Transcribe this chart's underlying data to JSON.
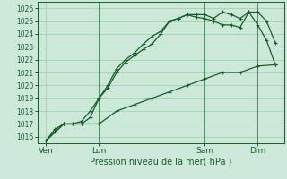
{
  "xlabel": "Pression niveau de la mer( hPa )",
  "ylim": [
    1015.5,
    1026.5
  ],
  "yticks": [
    1016,
    1017,
    1018,
    1019,
    1020,
    1021,
    1022,
    1023,
    1024,
    1025,
    1026
  ],
  "background_color": "#cce8d8",
  "grid_color": "#99ccaa",
  "line_color": "#1a5c2a",
  "xtick_labels": [
    "Ven",
    "Lun",
    "Sam",
    "Dim"
  ],
  "xtick_positions": [
    0,
    3,
    9,
    12
  ],
  "vline_positions": [
    3,
    9,
    12
  ],
  "series1_x": [
    0,
    0.5,
    1.0,
    1.5,
    2.0,
    2.5,
    3.0,
    3.5,
    4.0,
    4.5,
    5.0,
    5.5,
    6.0,
    6.5,
    7.0,
    7.5,
    8.0,
    8.5,
    9.0,
    9.5,
    10.0,
    10.5,
    11.0,
    11.5,
    12.0,
    12.5,
    13.0
  ],
  "series1_y": [
    1015.7,
    1016.6,
    1017.0,
    1017.0,
    1017.0,
    1017.5,
    1019.0,
    1019.8,
    1021.0,
    1021.8,
    1022.3,
    1022.8,
    1023.2,
    1024.0,
    1025.0,
    1025.2,
    1025.5,
    1025.5,
    1025.5,
    1025.2,
    1025.7,
    1025.5,
    1025.2,
    1025.7,
    1025.7,
    1025.0,
    1023.3
  ],
  "series2_x": [
    0,
    0.5,
    1.0,
    1.5,
    2.0,
    2.5,
    3.0,
    3.5,
    4.0,
    4.5,
    5.0,
    5.5,
    6.0,
    6.5,
    7.0,
    7.5,
    8.0,
    8.5,
    9.0,
    9.5,
    10.0,
    10.5,
    11.0,
    11.5,
    12.0,
    12.5,
    13.0
  ],
  "series2_y": [
    1015.7,
    1016.4,
    1017.0,
    1017.0,
    1017.2,
    1018.0,
    1019.0,
    1020.0,
    1021.3,
    1022.0,
    1022.5,
    1023.2,
    1023.8,
    1024.2,
    1025.0,
    1025.2,
    1025.5,
    1025.3,
    1025.2,
    1025.0,
    1024.7,
    1024.7,
    1024.5,
    1025.7,
    1024.7,
    1023.5,
    1021.6
  ],
  "series3_x": [
    0,
    1,
    2,
    3,
    4,
    5,
    6,
    7,
    8,
    9,
    10,
    11,
    12,
    13
  ],
  "series3_y": [
    1015.7,
    1017.0,
    1017.0,
    1017.0,
    1018.0,
    1018.5,
    1019.0,
    1019.5,
    1020.0,
    1020.5,
    1021.0,
    1021.0,
    1021.5,
    1021.6
  ],
  "linewidth": 0.9,
  "markersize": 3.5,
  "marker": "+"
}
